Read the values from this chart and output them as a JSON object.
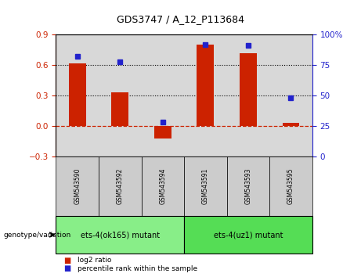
{
  "title": "GDS3747 / A_12_P113684",
  "samples": [
    "GSM543590",
    "GSM543592",
    "GSM543594",
    "GSM543591",
    "GSM543593",
    "GSM543595"
  ],
  "log2_ratio": [
    0.62,
    0.33,
    -0.12,
    0.8,
    0.72,
    0.03
  ],
  "percentile_rank": [
    82,
    78,
    28,
    92,
    91,
    48
  ],
  "bar_color": "#cc2200",
  "dot_color": "#2222cc",
  "ylim_left": [
    -0.3,
    0.9
  ],
  "ylim_right": [
    0,
    100
  ],
  "yticks_left": [
    -0.3,
    0.0,
    0.3,
    0.6,
    0.9
  ],
  "yticks_right": [
    0,
    25,
    50,
    75,
    100
  ],
  "hlines": [
    0.3,
    0.6
  ],
  "groups": [
    {
      "label": "ets-4(ok165) mutant",
      "indices": [
        0,
        1,
        2
      ],
      "color": "#88ee88"
    },
    {
      "label": "ets-4(uz1) mutant",
      "indices": [
        3,
        4,
        5
      ],
      "color": "#55dd55"
    }
  ],
  "genotype_label": "genotype/variation",
  "legend_items": [
    {
      "label": "log2 ratio",
      "color": "#cc2200"
    },
    {
      "label": "percentile rank within the sample",
      "color": "#2222cc"
    }
  ],
  "background_color": "#d8d8d8",
  "zero_line_color": "#cc2200",
  "bar_width": 0.4
}
